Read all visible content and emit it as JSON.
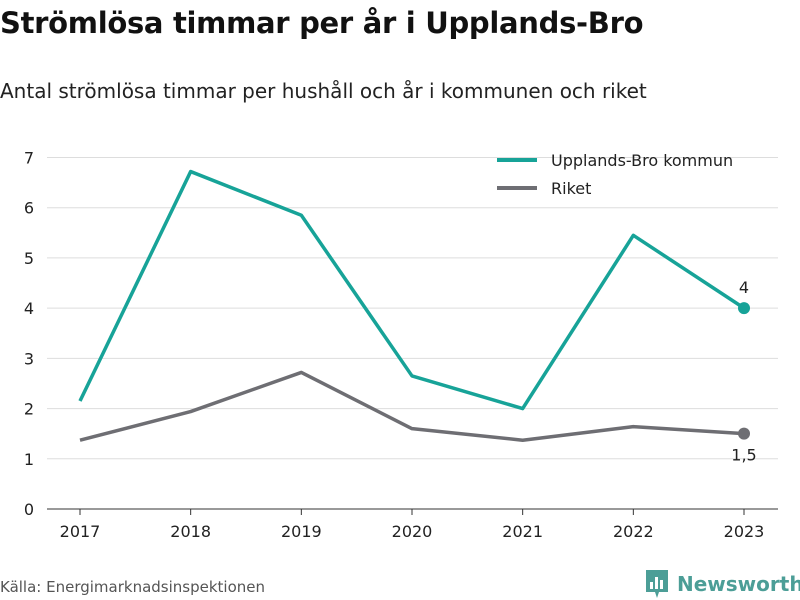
{
  "title": "Strömlösa timmar per år i Upplands-Bro",
  "subtitle": "Antal strömlösa timmar per hushåll och år i kommunen och riket",
  "source": "Källa: Energimarknadsinspektionen",
  "brand": {
    "name": "Newsworthy",
    "icon": "newsworthy-logo-icon",
    "color": "#4c9e97"
  },
  "chart_data": {
    "type": "line",
    "title": "",
    "xlabel": "",
    "ylabel": "",
    "categories": [
      "2017",
      "2018",
      "2019",
      "2020",
      "2021",
      "2022",
      "2023"
    ],
    "ylim": [
      0,
      7
    ],
    "yticks": [
      0,
      1,
      2,
      3,
      4,
      5,
      6,
      7
    ],
    "grid": true,
    "legend_position": "top-right",
    "series": [
      {
        "name": "Upplands-Bro kommun",
        "color": "#17a398",
        "values": [
          2.15,
          6.72,
          5.85,
          2.65,
          2.0,
          5.45,
          4.0
        ],
        "end_label": "4"
      },
      {
        "name": "Riket",
        "color": "#6e6e73",
        "values": [
          1.37,
          1.94,
          2.72,
          1.6,
          1.37,
          1.64,
          1.5
        ],
        "end_label": "1,5"
      }
    ]
  }
}
